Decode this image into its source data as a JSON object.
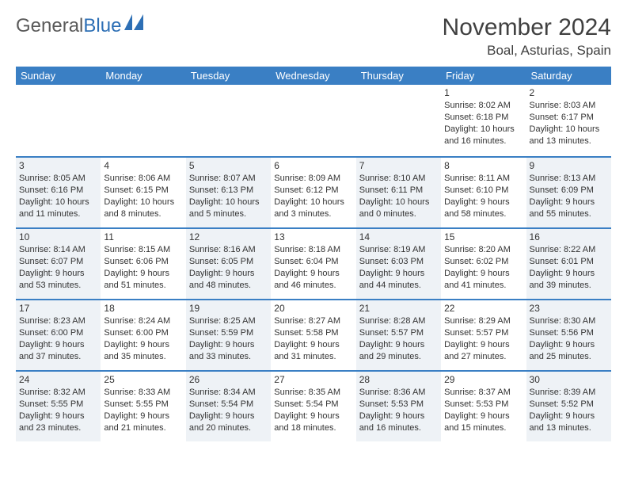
{
  "logo": {
    "part1": "General",
    "part2": "Blue"
  },
  "title": "November 2024",
  "location": "Boal, Asturias, Spain",
  "colors": {
    "header_bg": "#3a7fc4",
    "header_text": "#ffffff",
    "rule": "#3a7fc4",
    "shade": "#eef2f6",
    "logo_gray": "#5a5a5a",
    "logo_blue": "#2d6fb5"
  },
  "dayHeaders": [
    "Sunday",
    "Monday",
    "Tuesday",
    "Wednesday",
    "Thursday",
    "Friday",
    "Saturday"
  ],
  "weeks": [
    [
      {
        "num": "",
        "sunrise": "",
        "sunset": "",
        "daylight": "",
        "shaded": false
      },
      {
        "num": "",
        "sunrise": "",
        "sunset": "",
        "daylight": "",
        "shaded": false
      },
      {
        "num": "",
        "sunrise": "",
        "sunset": "",
        "daylight": "",
        "shaded": false
      },
      {
        "num": "",
        "sunrise": "",
        "sunset": "",
        "daylight": "",
        "shaded": false
      },
      {
        "num": "",
        "sunrise": "",
        "sunset": "",
        "daylight": "",
        "shaded": false
      },
      {
        "num": "1",
        "sunrise": "Sunrise: 8:02 AM",
        "sunset": "Sunset: 6:18 PM",
        "daylight": "Daylight: 10 hours and 16 minutes.",
        "shaded": false
      },
      {
        "num": "2",
        "sunrise": "Sunrise: 8:03 AM",
        "sunset": "Sunset: 6:17 PM",
        "daylight": "Daylight: 10 hours and 13 minutes.",
        "shaded": false
      }
    ],
    [
      {
        "num": "3",
        "sunrise": "Sunrise: 8:05 AM",
        "sunset": "Sunset: 6:16 PM",
        "daylight": "Daylight: 10 hours and 11 minutes.",
        "shaded": true
      },
      {
        "num": "4",
        "sunrise": "Sunrise: 8:06 AM",
        "sunset": "Sunset: 6:15 PM",
        "daylight": "Daylight: 10 hours and 8 minutes.",
        "shaded": false
      },
      {
        "num": "5",
        "sunrise": "Sunrise: 8:07 AM",
        "sunset": "Sunset: 6:13 PM",
        "daylight": "Daylight: 10 hours and 5 minutes.",
        "shaded": true
      },
      {
        "num": "6",
        "sunrise": "Sunrise: 8:09 AM",
        "sunset": "Sunset: 6:12 PM",
        "daylight": "Daylight: 10 hours and 3 minutes.",
        "shaded": false
      },
      {
        "num": "7",
        "sunrise": "Sunrise: 8:10 AM",
        "sunset": "Sunset: 6:11 PM",
        "daylight": "Daylight: 10 hours and 0 minutes.",
        "shaded": true
      },
      {
        "num": "8",
        "sunrise": "Sunrise: 8:11 AM",
        "sunset": "Sunset: 6:10 PM",
        "daylight": "Daylight: 9 hours and 58 minutes.",
        "shaded": false
      },
      {
        "num": "9",
        "sunrise": "Sunrise: 8:13 AM",
        "sunset": "Sunset: 6:09 PM",
        "daylight": "Daylight: 9 hours and 55 minutes.",
        "shaded": true
      }
    ],
    [
      {
        "num": "10",
        "sunrise": "Sunrise: 8:14 AM",
        "sunset": "Sunset: 6:07 PM",
        "daylight": "Daylight: 9 hours and 53 minutes.",
        "shaded": true
      },
      {
        "num": "11",
        "sunrise": "Sunrise: 8:15 AM",
        "sunset": "Sunset: 6:06 PM",
        "daylight": "Daylight: 9 hours and 51 minutes.",
        "shaded": false
      },
      {
        "num": "12",
        "sunrise": "Sunrise: 8:16 AM",
        "sunset": "Sunset: 6:05 PM",
        "daylight": "Daylight: 9 hours and 48 minutes.",
        "shaded": true
      },
      {
        "num": "13",
        "sunrise": "Sunrise: 8:18 AM",
        "sunset": "Sunset: 6:04 PM",
        "daylight": "Daylight: 9 hours and 46 minutes.",
        "shaded": false
      },
      {
        "num": "14",
        "sunrise": "Sunrise: 8:19 AM",
        "sunset": "Sunset: 6:03 PM",
        "daylight": "Daylight: 9 hours and 44 minutes.",
        "shaded": true
      },
      {
        "num": "15",
        "sunrise": "Sunrise: 8:20 AM",
        "sunset": "Sunset: 6:02 PM",
        "daylight": "Daylight: 9 hours and 41 minutes.",
        "shaded": false
      },
      {
        "num": "16",
        "sunrise": "Sunrise: 8:22 AM",
        "sunset": "Sunset: 6:01 PM",
        "daylight": "Daylight: 9 hours and 39 minutes.",
        "shaded": true
      }
    ],
    [
      {
        "num": "17",
        "sunrise": "Sunrise: 8:23 AM",
        "sunset": "Sunset: 6:00 PM",
        "daylight": "Daylight: 9 hours and 37 minutes.",
        "shaded": true
      },
      {
        "num": "18",
        "sunrise": "Sunrise: 8:24 AM",
        "sunset": "Sunset: 6:00 PM",
        "daylight": "Daylight: 9 hours and 35 minutes.",
        "shaded": false
      },
      {
        "num": "19",
        "sunrise": "Sunrise: 8:25 AM",
        "sunset": "Sunset: 5:59 PM",
        "daylight": "Daylight: 9 hours and 33 minutes.",
        "shaded": true
      },
      {
        "num": "20",
        "sunrise": "Sunrise: 8:27 AM",
        "sunset": "Sunset: 5:58 PM",
        "daylight": "Daylight: 9 hours and 31 minutes.",
        "shaded": false
      },
      {
        "num": "21",
        "sunrise": "Sunrise: 8:28 AM",
        "sunset": "Sunset: 5:57 PM",
        "daylight": "Daylight: 9 hours and 29 minutes.",
        "shaded": true
      },
      {
        "num": "22",
        "sunrise": "Sunrise: 8:29 AM",
        "sunset": "Sunset: 5:57 PM",
        "daylight": "Daylight: 9 hours and 27 minutes.",
        "shaded": false
      },
      {
        "num": "23",
        "sunrise": "Sunrise: 8:30 AM",
        "sunset": "Sunset: 5:56 PM",
        "daylight": "Daylight: 9 hours and 25 minutes.",
        "shaded": true
      }
    ],
    [
      {
        "num": "24",
        "sunrise": "Sunrise: 8:32 AM",
        "sunset": "Sunset: 5:55 PM",
        "daylight": "Daylight: 9 hours and 23 minutes.",
        "shaded": true
      },
      {
        "num": "25",
        "sunrise": "Sunrise: 8:33 AM",
        "sunset": "Sunset: 5:55 PM",
        "daylight": "Daylight: 9 hours and 21 minutes.",
        "shaded": false
      },
      {
        "num": "26",
        "sunrise": "Sunrise: 8:34 AM",
        "sunset": "Sunset: 5:54 PM",
        "daylight": "Daylight: 9 hours and 20 minutes.",
        "shaded": true
      },
      {
        "num": "27",
        "sunrise": "Sunrise: 8:35 AM",
        "sunset": "Sunset: 5:54 PM",
        "daylight": "Daylight: 9 hours and 18 minutes.",
        "shaded": false
      },
      {
        "num": "28",
        "sunrise": "Sunrise: 8:36 AM",
        "sunset": "Sunset: 5:53 PM",
        "daylight": "Daylight: 9 hours and 16 minutes.",
        "shaded": true
      },
      {
        "num": "29",
        "sunrise": "Sunrise: 8:37 AM",
        "sunset": "Sunset: 5:53 PM",
        "daylight": "Daylight: 9 hours and 15 minutes.",
        "shaded": false
      },
      {
        "num": "30",
        "sunrise": "Sunrise: 8:39 AM",
        "sunset": "Sunset: 5:52 PM",
        "daylight": "Daylight: 9 hours and 13 minutes.",
        "shaded": true
      }
    ]
  ]
}
